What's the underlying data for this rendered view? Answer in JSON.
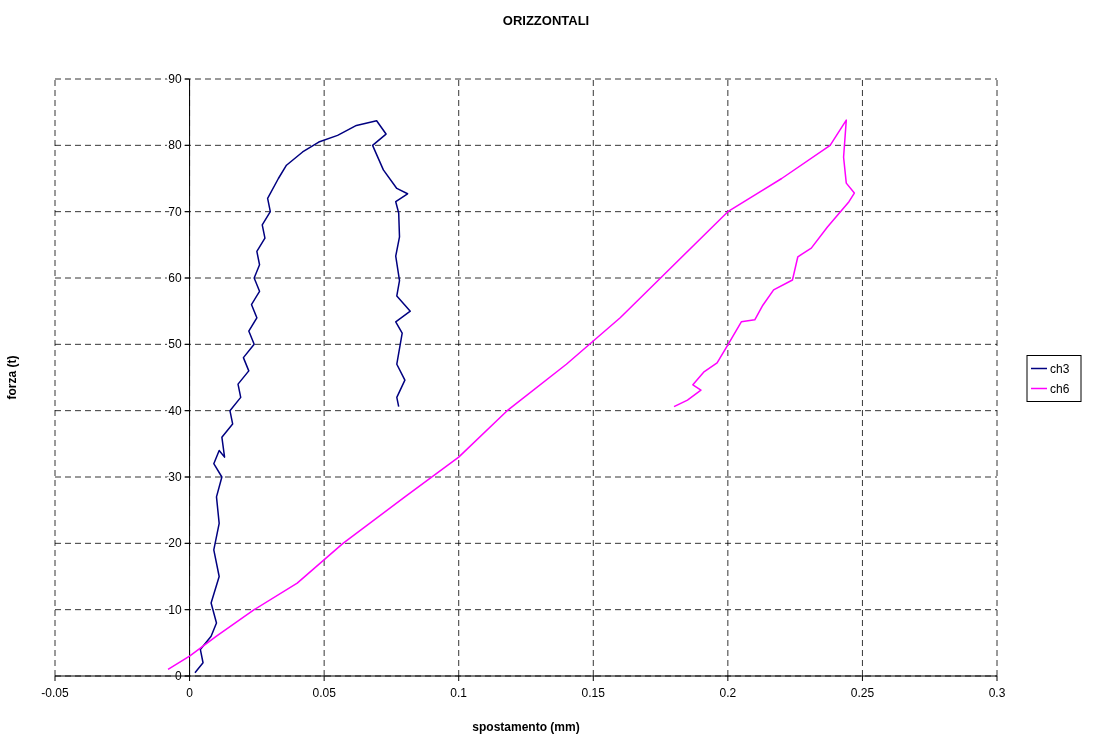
{
  "chart_data": {
    "type": "line",
    "title": "ORIZZONTALI",
    "xlabel": "spostamento (mm)",
    "ylabel": "forza (t)",
    "xlim": [
      -0.05,
      0.3
    ],
    "xticks": [
      -0.05,
      0,
      0.05,
      0.1,
      0.15,
      0.2,
      0.25,
      0.3
    ],
    "ylim": [
      0,
      90
    ],
    "yticks": [
      0,
      10,
      20,
      30,
      40,
      50,
      60,
      70,
      80,
      90
    ],
    "grid": true,
    "legend": "right",
    "marker": "none",
    "line_style": "solid",
    "series": [
      {
        "name": "ch3",
        "color": "#000080",
        "x": [
          0.002,
          0.005,
          0.004,
          0.008,
          0.01,
          0.008,
          0.011,
          0.009,
          0.011,
          0.01,
          0.012,
          0.009,
          0.011,
          0.013,
          0.012,
          0.016,
          0.015,
          0.019,
          0.018,
          0.022,
          0.02,
          0.024,
          0.022,
          0.025,
          0.023,
          0.026,
          0.024,
          0.026,
          0.025,
          0.028,
          0.027,
          0.03,
          0.029,
          0.033,
          0.036,
          0.042,
          0.048,
          0.055,
          0.062,
          0.0695,
          0.073,
          0.068,
          0.072,
          0.077,
          0.081,
          0.0766,
          0.0777,
          0.078,
          0.0766,
          0.078,
          0.077,
          0.082,
          0.0766,
          0.079,
          0.077,
          0.08,
          0.077,
          0.0777
        ],
        "values": [
          0.5,
          2,
          4,
          6,
          8,
          11,
          15,
          19,
          23,
          27,
          30,
          32,
          34,
          33,
          36,
          38,
          40,
          42,
          44,
          46,
          48,
          50,
          52,
          54,
          56,
          58,
          60,
          62,
          64,
          66,
          68,
          70,
          72,
          75,
          77,
          79,
          80.5,
          81.5,
          83,
          83.7,
          81.7,
          80,
          76.3,
          73.5,
          72.7,
          71.5,
          69.8,
          66.2,
          63.3,
          59.6,
          57.3,
          55,
          53.4,
          51.7,
          47,
          44.6,
          42,
          40.6
        ]
      },
      {
        "name": "ch6",
        "color": "#ff00ff",
        "x": [
          -0.008,
          0,
          0.01,
          0.024,
          0.04,
          0.057,
          0.08,
          0.1,
          0.118,
          0.14,
          0.16,
          0.175,
          0.2,
          0.22,
          0.238,
          0.244,
          0.243,
          0.244,
          0.247,
          0.245,
          0.237,
          0.231,
          0.226,
          0.224,
          0.217,
          0.213,
          0.21,
          0.205,
          0.2,
          0.196,
          0.191,
          0.187,
          0.19,
          0.185,
          0.18
        ],
        "values": [
          1,
          3,
          6,
          10,
          14,
          20,
          27,
          33,
          40,
          47,
          54,
          60,
          70,
          75,
          80,
          83.8,
          78.2,
          74.3,
          72.8,
          71.5,
          67.7,
          64.5,
          63.2,
          59.7,
          58.2,
          55.9,
          53.7,
          53.4,
          49.9,
          47.2,
          45.8,
          43.9,
          43.1,
          41.6,
          40.6
        ]
      }
    ]
  }
}
